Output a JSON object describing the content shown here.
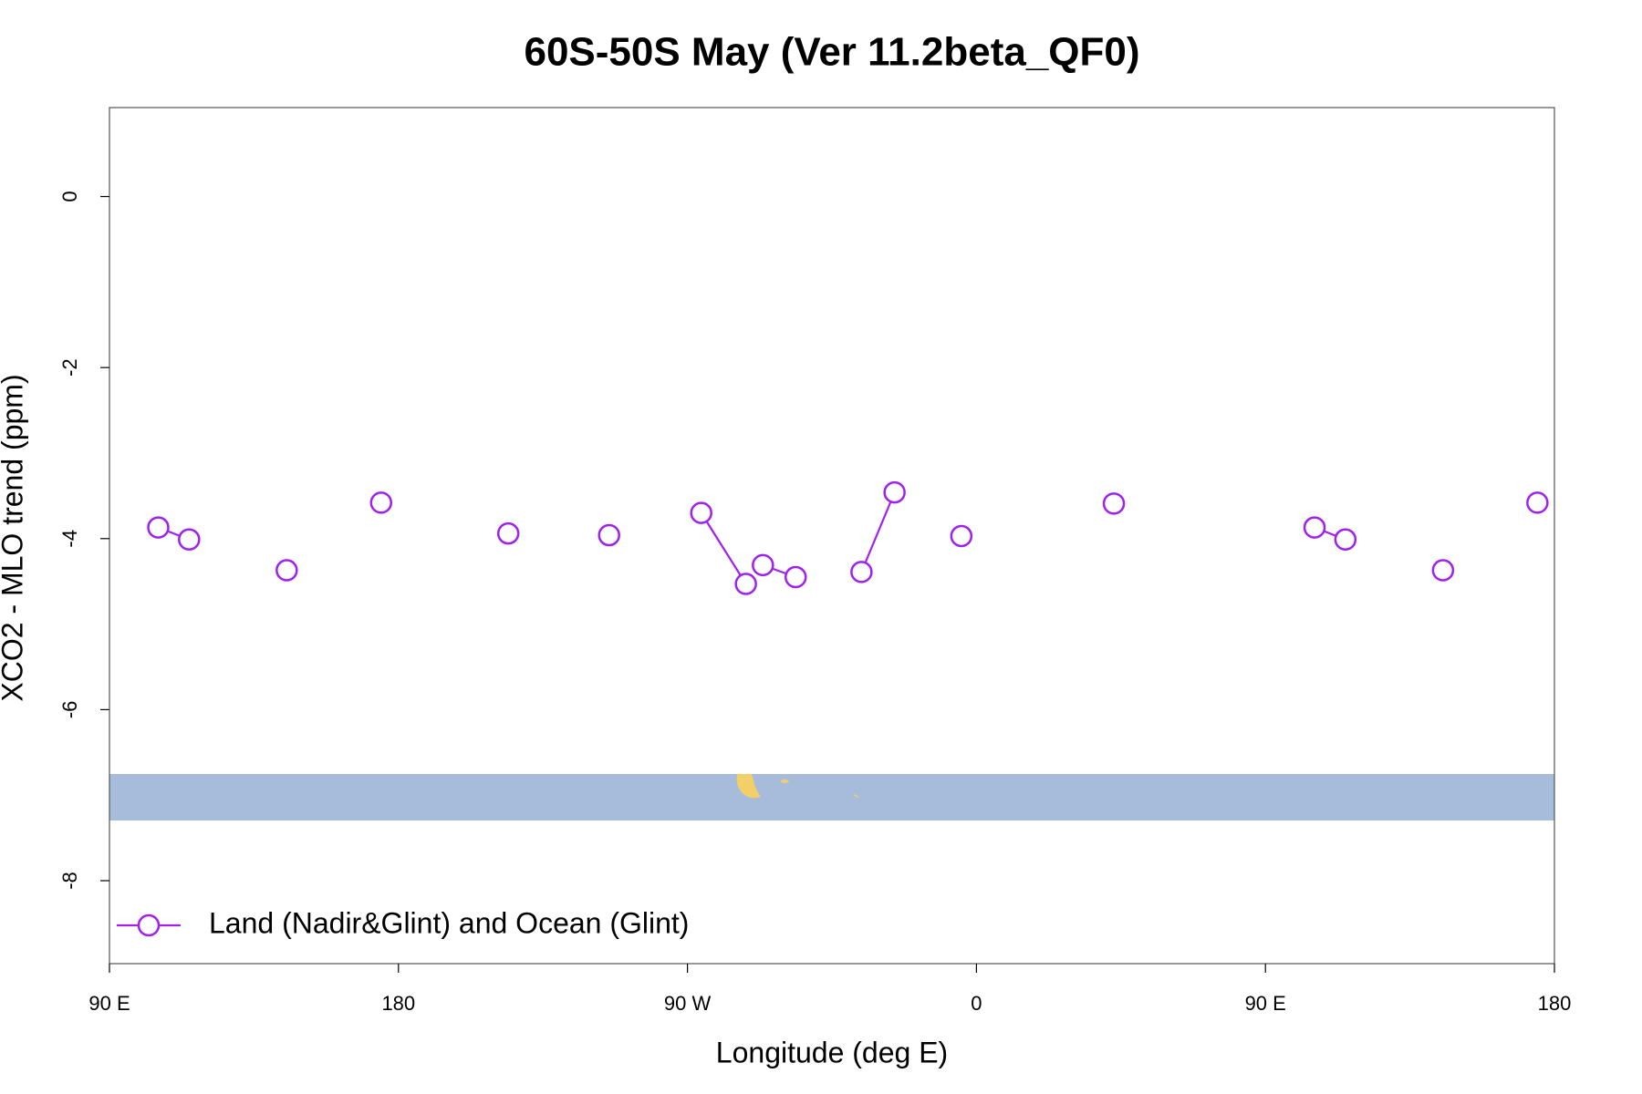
{
  "chart_data": {
    "type": "line",
    "title": "60S-50S May (Ver 11.2beta_QF0)",
    "x_label": "Longitude (deg E)",
    "y_label": "XCO2 - MLO trend (ppm)",
    "xlim": [
      90,
      540
    ],
    "ylim": [
      -8.97,
      1.04
    ],
    "xticks": [
      {
        "value": 90,
        "label": "90 E"
      },
      {
        "value": 180,
        "label": "180"
      },
      {
        "value": 270,
        "label": "90 W"
      },
      {
        "value": 360,
        "label": "0"
      },
      {
        "value": 450,
        "label": "90 E"
      },
      {
        "value": 540,
        "label": "180"
      }
    ],
    "yticks": [
      -8,
      -6,
      -4,
      -2,
      0
    ],
    "legend_position": "bottom-left",
    "x": [
      105.2,
      114.8,
      null,
      145.2,
      null,
      174.6,
      null,
      214.2,
      null,
      245.6,
      null,
      274.3,
      288.2,
      null,
      293.5,
      303.7,
      null,
      324.2,
      334.5,
      null,
      355.3,
      null,
      402.8,
      null,
      465.3,
      474.9,
      null,
      505.3,
      null,
      534.7
    ],
    "series": [
      {
        "name": "Land (Nadir&Glint) and Ocean (Glint)",
        "color": "#a020f0",
        "values": [
          -3.87,
          -4.01,
          null,
          -4.37,
          null,
          -3.58,
          null,
          -3.94,
          null,
          -3.96,
          null,
          -3.7,
          -4.53,
          null,
          -4.31,
          -4.45,
          null,
          -4.39,
          -3.46,
          null,
          -3.97,
          null,
          -3.59,
          null,
          -3.87,
          -4.01,
          null,
          -4.37,
          null,
          -3.58
        ]
      }
    ]
  }
}
